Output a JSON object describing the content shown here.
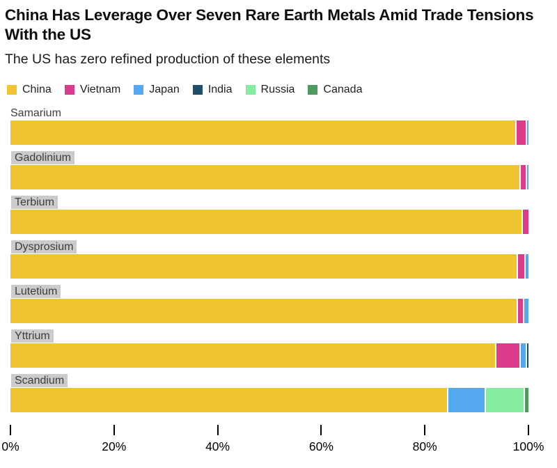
{
  "title": "China Has Leverage Over Seven Rare Earth Metals Amid Trade Tensions With the US",
  "subtitle": "The US has zero refined production of these elements",
  "legend": [
    {
      "label": "China",
      "color": "#F0C330"
    },
    {
      "label": "Vietnam",
      "color": "#DC3C8C"
    },
    {
      "label": "Japan",
      "color": "#53A8F0"
    },
    {
      "label": "India",
      "color": "#1F4E6B"
    },
    {
      "label": "Russia",
      "color": "#86EDA0"
    },
    {
      "label": "Canada",
      "color": "#4E9A5F"
    }
  ],
  "chart_data": {
    "type": "bar",
    "orientation": "horizontal",
    "stacked": true,
    "unit": "percent of refined production",
    "categories": [
      "Samarium",
      "Gadolinium",
      "Terbium",
      "Dysprosium",
      "Lutetium",
      "Yttrium",
      "Scandium"
    ],
    "label_highlighted": [
      false,
      true,
      true,
      true,
      true,
      true,
      true
    ],
    "series": [
      {
        "name": "China",
        "values": [
          97.5,
          98.3,
          98.6,
          97.7,
          97.7,
          93.5,
          84.3
        ]
      },
      {
        "name": "Vietnam",
        "values": [
          1.9,
          1.2,
          1.4,
          1.5,
          1.2,
          4.7,
          0
        ]
      },
      {
        "name": "Japan",
        "values": [
          0.6,
          0.5,
          0,
          0.8,
          1.1,
          1.2,
          7.2
        ]
      },
      {
        "name": "India",
        "values": [
          0,
          0,
          0,
          0,
          0,
          0.6,
          0
        ]
      },
      {
        "name": "Russia",
        "values": [
          0,
          0,
          0,
          0,
          0,
          0,
          7.5
        ]
      },
      {
        "name": "Canada",
        "values": [
          0,
          0,
          0,
          0,
          0,
          0,
          1.0
        ]
      }
    ],
    "xticks": [
      "0%",
      "20%",
      "40%",
      "60%",
      "80%",
      "100%"
    ],
    "xlim": [
      0,
      100
    ],
    "grid": false,
    "legend_position": "top"
  }
}
